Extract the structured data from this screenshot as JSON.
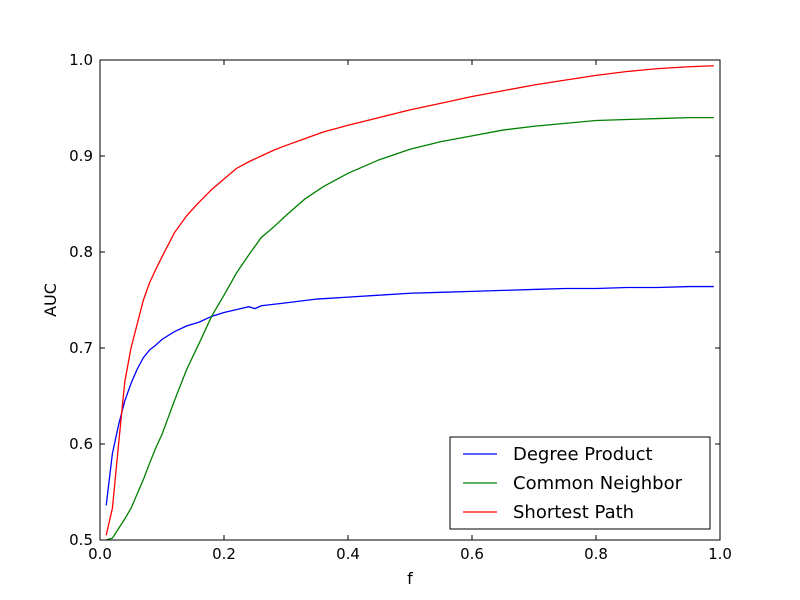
{
  "chart_data": {
    "type": "line",
    "title": "",
    "xlabel": "f",
    "ylabel": "AUC",
    "xlim": [
      0.0,
      1.0
    ],
    "ylim": [
      0.5,
      1.0
    ],
    "xticks": [
      0.0,
      0.2,
      0.4,
      0.6,
      0.8,
      1.0
    ],
    "xtick_labels": [
      "0.0",
      "0.2",
      "0.4",
      "0.6",
      "0.8",
      "1.0"
    ],
    "yticks": [
      0.5,
      0.6,
      0.7,
      0.8,
      0.9,
      1.0
    ],
    "ytick_labels": [
      "0.5",
      "0.6",
      "0.7",
      "0.8",
      "0.9",
      "1.0"
    ],
    "grid": false,
    "legend_position": "lower-right",
    "series": [
      {
        "name": "Degree Product",
        "color": "#0000ff",
        "x": [
          0.01,
          0.02,
          0.03,
          0.04,
          0.05,
          0.06,
          0.07,
          0.08,
          0.09,
          0.1,
          0.12,
          0.14,
          0.16,
          0.18,
          0.2,
          0.22,
          0.24,
          0.25,
          0.26,
          0.3,
          0.35,
          0.4,
          0.45,
          0.5,
          0.55,
          0.6,
          0.65,
          0.7,
          0.75,
          0.8,
          0.85,
          0.9,
          0.95,
          0.99
        ],
        "y": [
          0.536,
          0.59,
          0.62,
          0.645,
          0.663,
          0.678,
          0.69,
          0.698,
          0.703,
          0.709,
          0.717,
          0.723,
          0.727,
          0.733,
          0.737,
          0.74,
          0.743,
          0.741,
          0.744,
          0.747,
          0.751,
          0.753,
          0.755,
          0.757,
          0.758,
          0.759,
          0.76,
          0.761,
          0.762,
          0.762,
          0.763,
          0.763,
          0.764,
          0.764
        ]
      },
      {
        "name": "Common Neighbor",
        "color": "#008000",
        "x": [
          0.01,
          0.02,
          0.03,
          0.04,
          0.05,
          0.06,
          0.07,
          0.08,
          0.09,
          0.1,
          0.12,
          0.14,
          0.16,
          0.18,
          0.2,
          0.22,
          0.24,
          0.26,
          0.28,
          0.3,
          0.33,
          0.36,
          0.4,
          0.45,
          0.5,
          0.55,
          0.6,
          0.65,
          0.7,
          0.75,
          0.8,
          0.85,
          0.9,
          0.95,
          0.99
        ],
        "y": [
          0.5,
          0.502,
          0.512,
          0.522,
          0.533,
          0.548,
          0.563,
          0.58,
          0.596,
          0.61,
          0.645,
          0.678,
          0.705,
          0.733,
          0.755,
          0.778,
          0.797,
          0.815,
          0.826,
          0.838,
          0.855,
          0.868,
          0.882,
          0.896,
          0.907,
          0.915,
          0.921,
          0.927,
          0.931,
          0.934,
          0.937,
          0.938,
          0.939,
          0.94,
          0.94
        ]
      },
      {
        "name": "Shortest Path",
        "color": "#ff0000",
        "x": [
          0.01,
          0.02,
          0.03,
          0.04,
          0.05,
          0.06,
          0.07,
          0.08,
          0.09,
          0.1,
          0.12,
          0.14,
          0.16,
          0.18,
          0.2,
          0.22,
          0.24,
          0.26,
          0.28,
          0.3,
          0.33,
          0.36,
          0.4,
          0.45,
          0.5,
          0.55,
          0.6,
          0.65,
          0.7,
          0.75,
          0.8,
          0.85,
          0.9,
          0.95,
          0.99
        ],
        "y": [
          0.505,
          0.533,
          0.6,
          0.665,
          0.7,
          0.725,
          0.75,
          0.768,
          0.782,
          0.795,
          0.82,
          0.838,
          0.852,
          0.865,
          0.876,
          0.887,
          0.894,
          0.9,
          0.906,
          0.911,
          0.918,
          0.925,
          0.932,
          0.94,
          0.948,
          0.955,
          0.962,
          0.968,
          0.974,
          0.979,
          0.984,
          0.988,
          0.991,
          0.993,
          0.994
        ]
      }
    ]
  }
}
